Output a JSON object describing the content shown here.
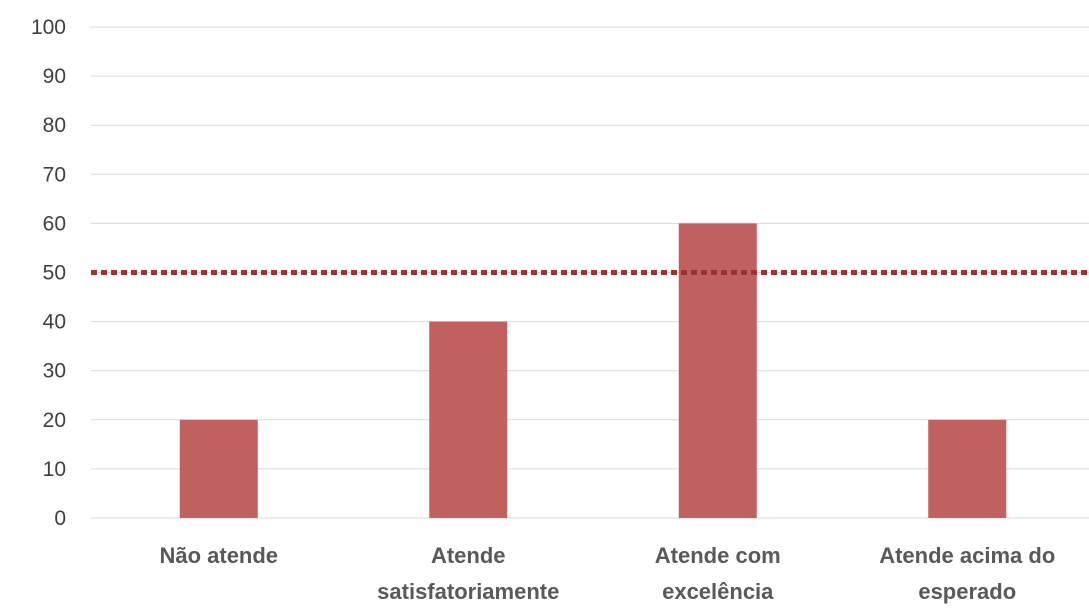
{
  "chart_data": {
    "type": "bar",
    "categories": [
      [
        "Não atende"
      ],
      [
        "Atende",
        "satisfatoriamente"
      ],
      [
        "Atende com",
        "excelência"
      ],
      [
        "Atende acima do",
        "esperado"
      ]
    ],
    "values": [
      20,
      40,
      60,
      20
    ],
    "reference_line": {
      "value": 50,
      "style": "dotted"
    },
    "ylim": [
      0,
      100
    ],
    "yticks": [
      "0",
      "10",
      "20",
      "30",
      "40",
      "50",
      "60",
      "70",
      "80",
      "90",
      "100"
    ],
    "grid": true,
    "legend": "none",
    "title": "",
    "xlabel": "",
    "ylabel": "",
    "colors": {
      "bar": "#c0605f",
      "reference_line": "#9b3332",
      "grid": "#d9d9d9"
    }
  }
}
